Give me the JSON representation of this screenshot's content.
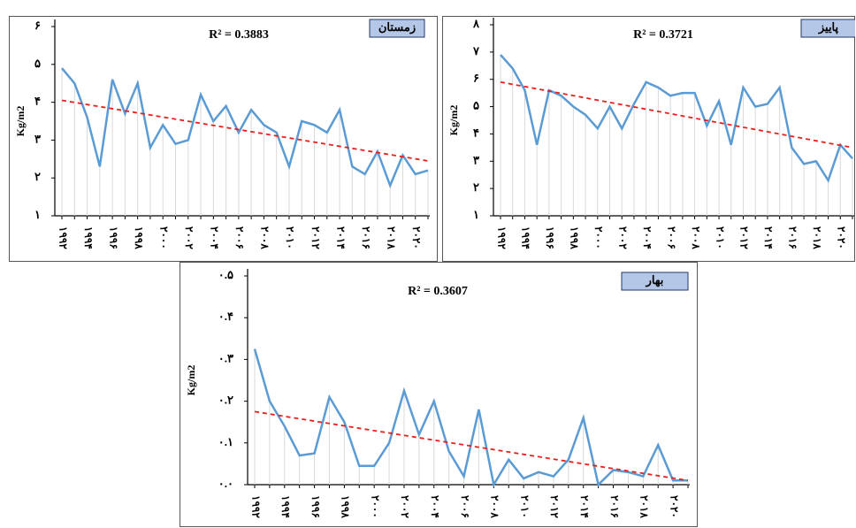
{
  "chart_data": [
    {
      "type": "line",
      "title": "زمستان",
      "annotation": "R² = 0.3883",
      "ylabel": "Kg/m2",
      "categories": [
        "۱۹۹۲",
        null,
        "۱۹۹۴",
        null,
        "۱۹۹۶",
        null,
        "۱۹۹۸",
        null,
        "۲۰۰۰",
        null,
        "۲۰۰۲",
        null,
        "۲۰۰۴",
        null,
        "۲۰۰۶",
        null,
        "۲۰۰۸",
        null,
        "۲۰۱۰",
        null,
        "۲۰۱۲",
        null,
        "۲۰۱۴",
        null,
        "۲۰۱۶",
        null,
        "۲۰۱۸",
        null,
        "۲۰۲۰",
        null
      ],
      "series": [
        {
          "color": "#5b9bd5",
          "values": [
            4.9,
            4.5,
            3.6,
            2.3,
            4.6,
            3.7,
            4.5,
            2.8,
            3.4,
            2.9,
            3.0,
            4.2,
            3.5,
            3.9,
            3.2,
            3.8,
            3.4,
            3.2,
            2.3,
            3.5,
            3.4,
            3.2,
            3.8,
            2.3,
            2.1,
            2.7,
            1.8,
            2.6,
            2.1,
            2.2
          ]
        }
      ],
      "trend": {
        "color": "#e8201c",
        "values": [
          4.05,
          2.45
        ]
      },
      "ylim": [
        1,
        6
      ],
      "yticks": [
        {
          "value": 1,
          "label": "۱"
        },
        {
          "value": 2,
          "label": "۲"
        },
        {
          "value": 3,
          "label": "۳"
        },
        {
          "value": 4,
          "label": "۴"
        },
        {
          "value": 5,
          "label": "۵"
        },
        {
          "value": 6,
          "label": "۶"
        }
      ]
    },
    {
      "type": "line",
      "title": "پاییز",
      "annotation": "R² = 0.3721",
      "ylabel": "Kg/m2",
      "categories": [
        "۱۹۹۲",
        null,
        "۱۹۹۴",
        null,
        "۱۹۹۶",
        null,
        "۱۹۹۸",
        null,
        "۲۰۰۰",
        null,
        "۲۰۰۲",
        null,
        "۲۰۰۴",
        null,
        "۲۰۰۶",
        null,
        "۲۰۰۸",
        null,
        "۲۰۱۰",
        null,
        "۲۰۱۲",
        null,
        "۲۰۱۴",
        null,
        "۲۰۱۶",
        null,
        "۲۰۱۸",
        null,
        "۲۰۲۰",
        null
      ],
      "series": [
        {
          "color": "#5b9bd5",
          "values": [
            6.9,
            6.4,
            5.6,
            3.6,
            5.6,
            5.4,
            5.0,
            4.7,
            4.2,
            5.0,
            4.2,
            5.1,
            5.9,
            5.7,
            5.4,
            5.5,
            5.5,
            4.3,
            5.2,
            3.6,
            5.7,
            5.0,
            5.1,
            5.7,
            3.5,
            2.9,
            3.0,
            2.3,
            3.6,
            3.1
          ]
        }
      ],
      "trend": {
        "color": "#e8201c",
        "values": [
          5.9,
          3.5
        ]
      },
      "ylim": [
        1,
        8
      ],
      "yticks": [
        {
          "value": 1,
          "label": "۱"
        },
        {
          "value": 2,
          "label": "۲"
        },
        {
          "value": 3,
          "label": "۳"
        },
        {
          "value": 4,
          "label": "۴"
        },
        {
          "value": 5,
          "label": "۵"
        },
        {
          "value": 6,
          "label": "۶"
        },
        {
          "value": 7,
          "label": "۷"
        },
        {
          "value": 8,
          "label": "۸"
        }
      ]
    },
    {
      "type": "line",
      "title": "بهار",
      "annotation": "R² = 0.3607",
      "ylabel": "Kg/m2",
      "categories": [
        "۱۹۹۲",
        null,
        "۱۹۹۴",
        null,
        "۱۹۹۶",
        null,
        "۱۹۹۸",
        null,
        "۲۰۰۰",
        null,
        "۲۰۰۲",
        null,
        "۲۰۰۴",
        null,
        "۲۰۰۶",
        null,
        "۲۰۰۸",
        null,
        "۲۰۱۰",
        null,
        "۲۰۱۲",
        null,
        "۲۰۱۴",
        null,
        "۲۰۱۶",
        null,
        "۲۰۱۸",
        null,
        "۲۰۲۰",
        null
      ],
      "series": [
        {
          "color": "#5b9bd5",
          "values": [
            0.325,
            0.2,
            0.14,
            0.07,
            0.075,
            0.21,
            0.15,
            0.045,
            0.045,
            0.1,
            0.225,
            0.12,
            0.2,
            0.08,
            0.02,
            0.18,
            0.0,
            0.06,
            0.015,
            0.03,
            0.02,
            0.06,
            0.16,
            0.0,
            0.035,
            0.03,
            0.02,
            0.095,
            0.01,
            0.01
          ]
        }
      ],
      "trend": {
        "color": "#e8201c",
        "values": [
          0.175,
          0.01
        ]
      },
      "ylim": [
        0,
        0.5
      ],
      "yticks": [
        {
          "value": 0,
          "label": "۰.۰"
        },
        {
          "value": 0.1,
          "label": "۰.۱"
        },
        {
          "value": 0.2,
          "label": "۰.۲"
        },
        {
          "value": 0.3,
          "label": "۰.۳"
        },
        {
          "value": 0.4,
          "label": "۰.۴"
        },
        {
          "value": 0.5,
          "label": "۰.۵"
        }
      ]
    }
  ]
}
